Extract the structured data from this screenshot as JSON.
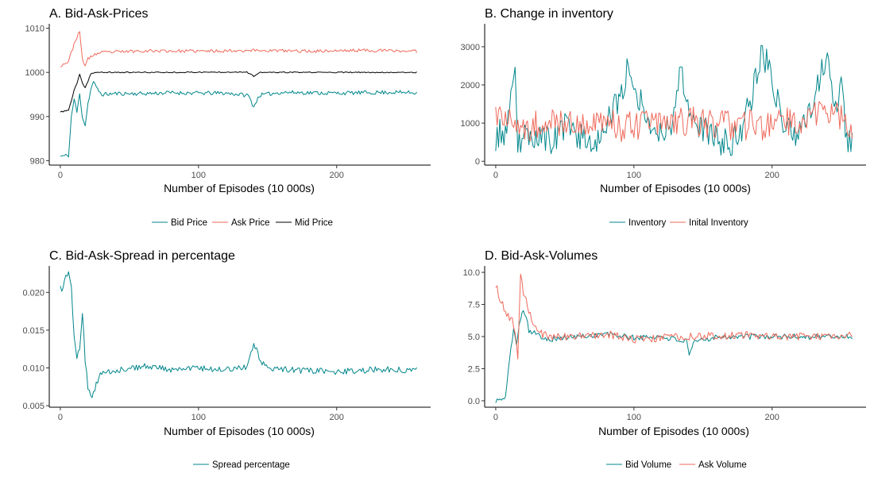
{
  "colors": {
    "bid": "#00868b",
    "ask": "#ee6a5b",
    "mid": "#000000"
  },
  "chart_data": [
    {
      "id": "A",
      "type": "line",
      "title": "A. Bid-Ask-Prices",
      "xlabel": "Number of Episodes (10 000s)",
      "ylabel": "",
      "xlim": [
        -8,
        268
      ],
      "ylim": [
        979,
        1011
      ],
      "xticks": [
        0,
        100,
        200
      ],
      "yticks": [
        980,
        990,
        1000,
        1010
      ],
      "tick_format": "int",
      "series": [
        {
          "name": "Bid Price",
          "color": "#00868b",
          "noise": 0.45,
          "seed": 11,
          "points": [
            [
              0,
              981
            ],
            [
              6,
              981.2
            ],
            [
              8,
              990
            ],
            [
              10,
              994
            ],
            [
              12,
              991
            ],
            [
              14,
              995
            ],
            [
              16,
              990
            ],
            [
              18,
              988
            ],
            [
              20,
              993
            ],
            [
              22,
              996
            ],
            [
              24,
              998
            ],
            [
              26,
              996.5
            ],
            [
              30,
              995
            ],
            [
              40,
              995.2
            ],
            [
              60,
              995.2
            ],
            [
              80,
              995.4
            ],
            [
              100,
              995.3
            ],
            [
              120,
              995.3
            ],
            [
              136,
              994.8
            ],
            [
              140,
              992.2
            ],
            [
              144,
              994.8
            ],
            [
              160,
              995.5
            ],
            [
              200,
              995.3
            ],
            [
              240,
              995.5
            ],
            [
              258,
              995.4
            ]
          ]
        },
        {
          "name": "Ask Price",
          "color": "#ee6a5b",
          "noise": 0.35,
          "seed": 23,
          "points": [
            [
              0,
              1001.5
            ],
            [
              6,
              1002.5
            ],
            [
              8,
              1004.5
            ],
            [
              10,
              1006.5
            ],
            [
              12,
              1008
            ],
            [
              14,
              1009
            ],
            [
              16,
              1003
            ],
            [
              18,
              1001.5
            ],
            [
              20,
              1003
            ],
            [
              24,
              1004
            ],
            [
              30,
              1004.5
            ],
            [
              60,
              1004.9
            ],
            [
              100,
              1004.8
            ],
            [
              140,
              1005
            ],
            [
              180,
              1004.8
            ],
            [
              220,
              1005
            ],
            [
              258,
              1004.8
            ]
          ]
        },
        {
          "name": "Mid Price",
          "color": "#000000",
          "noise": 0.12,
          "seed": 37,
          "points": [
            [
              0,
              991
            ],
            [
              6,
              991.5
            ],
            [
              8,
              993.5
            ],
            [
              10,
              996
            ],
            [
              12,
              997.5
            ],
            [
              14,
              999.5
            ],
            [
              16,
              997.5
            ],
            [
              18,
              996.5
            ],
            [
              20,
              998
            ],
            [
              22,
              999.7
            ],
            [
              26,
              1000
            ],
            [
              80,
              1000
            ],
            [
              135,
              1000.1
            ],
            [
              140,
              999.1
            ],
            [
              145,
              1000
            ],
            [
              200,
              1000
            ],
            [
              258,
              1000
            ]
          ]
        }
      ]
    },
    {
      "id": "B",
      "type": "line",
      "title": "B. Change in inventory",
      "xlabel": "Number of Episodes (10 000s)",
      "ylabel": "",
      "xlim": [
        -8,
        268
      ],
      "ylim": [
        -100,
        3600
      ],
      "xticks": [
        0,
        100,
        200
      ],
      "yticks": [
        0,
        1000,
        2000,
        3000
      ],
      "tick_format": "int",
      "series": [
        {
          "name": "Inventory",
          "color": "#00868b",
          "noise": 380,
          "seed": 53,
          "points": [
            [
              0,
              600
            ],
            [
              4,
              800
            ],
            [
              8,
              700
            ],
            [
              12,
              1800
            ],
            [
              14,
              2100
            ],
            [
              16,
              500
            ],
            [
              20,
              600
            ],
            [
              30,
              700
            ],
            [
              40,
              500
            ],
            [
              50,
              900
            ],
            [
              60,
              700
            ],
            [
              70,
              500
            ],
            [
              80,
              900
            ],
            [
              90,
              1700
            ],
            [
              96,
              2500
            ],
            [
              100,
              2100
            ],
            [
              108,
              1200
            ],
            [
              118,
              700
            ],
            [
              128,
              1100
            ],
            [
              134,
              2400
            ],
            [
              140,
              1400
            ],
            [
              150,
              800
            ],
            [
              160,
              600
            ],
            [
              170,
              400
            ],
            [
              178,
              900
            ],
            [
              186,
              1800
            ],
            [
              192,
              2800
            ],
            [
              198,
              2600
            ],
            [
              206,
              1200
            ],
            [
              216,
              700
            ],
            [
              226,
              1100
            ],
            [
              232,
              2000
            ],
            [
              240,
              2700
            ],
            [
              246,
              1500
            ],
            [
              250,
              2000
            ],
            [
              254,
              500
            ],
            [
              258,
              500
            ]
          ]
        },
        {
          "name": "Inital Inventory",
          "color": "#ee6a5b",
          "noise": 420,
          "seed": 71,
          "points": [
            [
              0,
              1200
            ],
            [
              4,
              1300
            ],
            [
              8,
              1100
            ],
            [
              12,
              900
            ],
            [
              16,
              700
            ],
            [
              20,
              900
            ],
            [
              30,
              1000
            ],
            [
              60,
              1000
            ],
            [
              100,
              900
            ],
            [
              130,
              1100
            ],
            [
              160,
              1000
            ],
            [
              200,
              900
            ],
            [
              230,
              1200
            ],
            [
              245,
              1400
            ],
            [
              258,
              900
            ]
          ]
        }
      ]
    },
    {
      "id": "C",
      "type": "line",
      "title": "C. Bid-Ask-Spread in percentage",
      "xlabel": "Number of Episodes (10 000s)",
      "ylabel": "",
      "xlim": [
        -8,
        268
      ],
      "ylim": [
        0.0048,
        0.0235
      ],
      "xticks": [
        0,
        100,
        200
      ],
      "yticks": [
        0.005,
        0.01,
        0.015,
        0.02
      ],
      "tick_format": "3dp",
      "series": [
        {
          "name": "Spread percentage",
          "color": "#00868b",
          "noise": 0.0004,
          "seed": 89,
          "points": [
            [
              0,
              0.0205
            ],
            [
              2,
              0.0203
            ],
            [
              4,
              0.0225
            ],
            [
              6,
              0.0224
            ],
            [
              8,
              0.0205
            ],
            [
              10,
              0.014
            ],
            [
              12,
              0.0115
            ],
            [
              14,
              0.0125
            ],
            [
              16,
              0.0175
            ],
            [
              18,
              0.011
            ],
            [
              20,
              0.0075
            ],
            [
              22,
              0.006
            ],
            [
              24,
              0.0065
            ],
            [
              26,
              0.008
            ],
            [
              28,
              0.0085
            ],
            [
              30,
              0.0095
            ],
            [
              40,
              0.0097
            ],
            [
              60,
              0.0102
            ],
            [
              80,
              0.0098
            ],
            [
              100,
              0.01
            ],
            [
              120,
              0.0098
            ],
            [
              135,
              0.0102
            ],
            [
              140,
              0.0132
            ],
            [
              145,
              0.011
            ],
            [
              150,
              0.01
            ],
            [
              170,
              0.0097
            ],
            [
              200,
              0.0095
            ],
            [
              230,
              0.0098
            ],
            [
              258,
              0.0097
            ]
          ]
        }
      ]
    },
    {
      "id": "D",
      "type": "line",
      "title": "D. Bid-Ask-Volumes",
      "xlabel": "Number of Episodes (10 000s)",
      "ylabel": "",
      "xlim": [
        -8,
        268
      ],
      "ylim": [
        -0.5,
        10.5
      ],
      "xticks": [
        0,
        100,
        200
      ],
      "yticks": [
        0,
        2.5,
        5,
        7.5,
        10
      ],
      "tick_format": "1dp",
      "series": [
        {
          "name": "Bid Volume",
          "color": "#00868b",
          "noise": 0.22,
          "seed": 101,
          "points": [
            [
              0,
              0
            ],
            [
              4,
              0.1
            ],
            [
              7,
              0.1
            ],
            [
              9,
              2.5
            ],
            [
              11,
              4
            ],
            [
              13,
              5.5
            ],
            [
              15,
              4.5
            ],
            [
              17,
              6
            ],
            [
              19,
              7
            ],
            [
              22,
              6.7
            ],
            [
              24,
              5.5
            ],
            [
              28,
              5.3
            ],
            [
              30,
              5.1
            ],
            [
              40,
              4.8
            ],
            [
              60,
              5
            ],
            [
              80,
              5.2
            ],
            [
              100,
              4.9
            ],
            [
              120,
              5
            ],
            [
              138,
              4.6
            ],
            [
              140,
              3.5
            ],
            [
              144,
              4.6
            ],
            [
              160,
              5
            ],
            [
              200,
              5
            ],
            [
              240,
              5
            ],
            [
              258,
              5
            ]
          ]
        },
        {
          "name": "Ask Volume",
          "color": "#ee6a5b",
          "noise": 0.3,
          "seed": 131,
          "points": [
            [
              0,
              9
            ],
            [
              3,
              8
            ],
            [
              5,
              7.5
            ],
            [
              8,
              6.8
            ],
            [
              10,
              6.5
            ],
            [
              12,
              6.3
            ],
            [
              14,
              5.2
            ],
            [
              16,
              3.5
            ],
            [
              18,
              10
            ],
            [
              20,
              8.5
            ],
            [
              22,
              8
            ],
            [
              24,
              7
            ],
            [
              26,
              6.5
            ],
            [
              30,
              5.3
            ],
            [
              40,
              5
            ],
            [
              60,
              5
            ],
            [
              80,
              5.2
            ],
            [
              100,
              4.8
            ],
            [
              140,
              5
            ],
            [
              180,
              5.1
            ],
            [
              220,
              5
            ],
            [
              258,
              5.1
            ]
          ]
        }
      ]
    }
  ]
}
